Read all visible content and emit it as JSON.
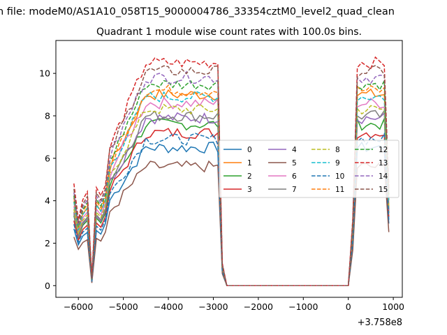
{
  "chart_data": {
    "type": "line",
    "suptitle": "n file: modeM0/AS1A10_058T15_9000004786_33354cztM0_level2_quad_clean",
    "title": "Quadrant 1 module wise count rates with 100.0s bins.",
    "xlabel": "",
    "ylabel": "",
    "x_offset_label": "+3.758e8",
    "xlim": [
      -6500,
      1200
    ],
    "ylim": [
      -0.55,
      11.55
    ],
    "xticks": [
      -6000,
      -5000,
      -4000,
      -3000,
      -2000,
      -1000,
      0,
      1000
    ],
    "xtick_labels": [
      "−6000",
      "−5000",
      "−4000",
      "−3000",
      "−2000",
      "−1000",
      "0",
      "1000"
    ],
    "yticks": [
      0,
      2,
      4,
      6,
      8,
      10
    ],
    "ytick_labels": [
      "0",
      "2",
      "4",
      "6",
      "8",
      "10"
    ],
    "grid": false,
    "legend": {
      "placement": "center-right",
      "columns": 4
    },
    "x": [
      -6100,
      -6000,
      -5900,
      -5800,
      -5700,
      -5600,
      -5500,
      -5400,
      -5300,
      -5200,
      -5100,
      -5000,
      -4900,
      -4800,
      -4700,
      -4600,
      -4500,
      -4400,
      -4300,
      -4200,
      -4100,
      -4000,
      -3900,
      -3800,
      -3700,
      -3600,
      -3500,
      -3400,
      -3300,
      -3200,
      -3100,
      -3000,
      -2900,
      -2800,
      -2700,
      -2600,
      -2500,
      -2400,
      -2300,
      -2200,
      -2100,
      -2000,
      -1900,
      -1800,
      -1700,
      -1600,
      -1500,
      -1400,
      -1300,
      -1200,
      -1100,
      -1000,
      -900,
      -800,
      -700,
      -600,
      -500,
      -400,
      -300,
      -200,
      -100,
      0,
      100,
      200,
      300,
      400,
      500,
      600,
      700,
      800,
      900
    ],
    "series": [
      {
        "name": "0",
        "color": "#1f77b4",
        "dash": false,
        "level": 6.5,
        "low": 0.47
      },
      {
        "name": "1",
        "color": "#ff7f0e",
        "dash": false,
        "level": 9.0,
        "low": 0.6
      },
      {
        "name": "2",
        "color": "#2ca02c",
        "dash": false,
        "level": 7.6,
        "low": 0.55
      },
      {
        "name": "3",
        "color": "#d62728",
        "dash": false,
        "level": 7.2,
        "low": 0.52
      },
      {
        "name": "4",
        "color": "#9467bd",
        "dash": false,
        "level": 7.9,
        "low": 0.55
      },
      {
        "name": "5",
        "color": "#8c564b",
        "dash": false,
        "level": 5.6,
        "low": 0.42
      },
      {
        "name": "6",
        "color": "#e377c2",
        "dash": false,
        "level": 8.6,
        "low": 0.58
      },
      {
        "name": "7",
        "color": "#7f7f7f",
        "dash": false,
        "level": 8.0,
        "low": 0.56
      },
      {
        "name": "8",
        "color": "#bcbd22",
        "dash": true,
        "level": 8.3,
        "low": 0.57
      },
      {
        "name": "9",
        "color": "#17becf",
        "dash": true,
        "level": 8.9,
        "low": 0.6
      },
      {
        "name": "10",
        "color": "#1f77b4",
        "dash": true,
        "level": 6.9,
        "low": 0.5
      },
      {
        "name": "11",
        "color": "#ff7f0e",
        "dash": true,
        "level": 9.2,
        "low": 0.62
      },
      {
        "name": "12",
        "color": "#2ca02c",
        "dash": true,
        "level": 9.5,
        "low": 0.62
      },
      {
        "name": "13",
        "color": "#d62728",
        "dash": true,
        "level": 10.5,
        "low": 0.66
      },
      {
        "name": "14",
        "color": "#9467bd",
        "dash": true,
        "level": 9.8,
        "low": 0.63
      },
      {
        "name": "15",
        "color": "#8c564b",
        "dash": true,
        "level": 10.1,
        "low": 0.64
      }
    ]
  }
}
